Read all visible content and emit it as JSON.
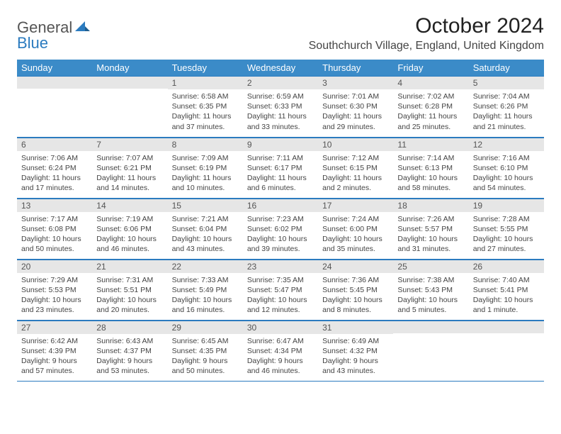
{
  "logo": {
    "text_general": "General",
    "text_blue": "Blue"
  },
  "header": {
    "month_title": "October 2024",
    "location": "Southchurch Village, England, United Kingdom"
  },
  "colors": {
    "header_bg": "#3b8bc8",
    "rule": "#2b7bbf",
    "daynum_bg": "#e6e6e6"
  },
  "day_headers": [
    "Sunday",
    "Monday",
    "Tuesday",
    "Wednesday",
    "Thursday",
    "Friday",
    "Saturday"
  ],
  "weeks": [
    [
      {
        "n": "",
        "sr": "",
        "ss": "",
        "dl": ""
      },
      {
        "n": "",
        "sr": "",
        "ss": "",
        "dl": ""
      },
      {
        "n": "1",
        "sr": "Sunrise: 6:58 AM",
        "ss": "Sunset: 6:35 PM",
        "dl": "Daylight: 11 hours and 37 minutes."
      },
      {
        "n": "2",
        "sr": "Sunrise: 6:59 AM",
        "ss": "Sunset: 6:33 PM",
        "dl": "Daylight: 11 hours and 33 minutes."
      },
      {
        "n": "3",
        "sr": "Sunrise: 7:01 AM",
        "ss": "Sunset: 6:30 PM",
        "dl": "Daylight: 11 hours and 29 minutes."
      },
      {
        "n": "4",
        "sr": "Sunrise: 7:02 AM",
        "ss": "Sunset: 6:28 PM",
        "dl": "Daylight: 11 hours and 25 minutes."
      },
      {
        "n": "5",
        "sr": "Sunrise: 7:04 AM",
        "ss": "Sunset: 6:26 PM",
        "dl": "Daylight: 11 hours and 21 minutes."
      }
    ],
    [
      {
        "n": "6",
        "sr": "Sunrise: 7:06 AM",
        "ss": "Sunset: 6:24 PM",
        "dl": "Daylight: 11 hours and 17 minutes."
      },
      {
        "n": "7",
        "sr": "Sunrise: 7:07 AM",
        "ss": "Sunset: 6:21 PM",
        "dl": "Daylight: 11 hours and 14 minutes."
      },
      {
        "n": "8",
        "sr": "Sunrise: 7:09 AM",
        "ss": "Sunset: 6:19 PM",
        "dl": "Daylight: 11 hours and 10 minutes."
      },
      {
        "n": "9",
        "sr": "Sunrise: 7:11 AM",
        "ss": "Sunset: 6:17 PM",
        "dl": "Daylight: 11 hours and 6 minutes."
      },
      {
        "n": "10",
        "sr": "Sunrise: 7:12 AM",
        "ss": "Sunset: 6:15 PM",
        "dl": "Daylight: 11 hours and 2 minutes."
      },
      {
        "n": "11",
        "sr": "Sunrise: 7:14 AM",
        "ss": "Sunset: 6:13 PM",
        "dl": "Daylight: 10 hours and 58 minutes."
      },
      {
        "n": "12",
        "sr": "Sunrise: 7:16 AM",
        "ss": "Sunset: 6:10 PM",
        "dl": "Daylight: 10 hours and 54 minutes."
      }
    ],
    [
      {
        "n": "13",
        "sr": "Sunrise: 7:17 AM",
        "ss": "Sunset: 6:08 PM",
        "dl": "Daylight: 10 hours and 50 minutes."
      },
      {
        "n": "14",
        "sr": "Sunrise: 7:19 AM",
        "ss": "Sunset: 6:06 PM",
        "dl": "Daylight: 10 hours and 46 minutes."
      },
      {
        "n": "15",
        "sr": "Sunrise: 7:21 AM",
        "ss": "Sunset: 6:04 PM",
        "dl": "Daylight: 10 hours and 43 minutes."
      },
      {
        "n": "16",
        "sr": "Sunrise: 7:23 AM",
        "ss": "Sunset: 6:02 PM",
        "dl": "Daylight: 10 hours and 39 minutes."
      },
      {
        "n": "17",
        "sr": "Sunrise: 7:24 AM",
        "ss": "Sunset: 6:00 PM",
        "dl": "Daylight: 10 hours and 35 minutes."
      },
      {
        "n": "18",
        "sr": "Sunrise: 7:26 AM",
        "ss": "Sunset: 5:57 PM",
        "dl": "Daylight: 10 hours and 31 minutes."
      },
      {
        "n": "19",
        "sr": "Sunrise: 7:28 AM",
        "ss": "Sunset: 5:55 PM",
        "dl": "Daylight: 10 hours and 27 minutes."
      }
    ],
    [
      {
        "n": "20",
        "sr": "Sunrise: 7:29 AM",
        "ss": "Sunset: 5:53 PM",
        "dl": "Daylight: 10 hours and 23 minutes."
      },
      {
        "n": "21",
        "sr": "Sunrise: 7:31 AM",
        "ss": "Sunset: 5:51 PM",
        "dl": "Daylight: 10 hours and 20 minutes."
      },
      {
        "n": "22",
        "sr": "Sunrise: 7:33 AM",
        "ss": "Sunset: 5:49 PM",
        "dl": "Daylight: 10 hours and 16 minutes."
      },
      {
        "n": "23",
        "sr": "Sunrise: 7:35 AM",
        "ss": "Sunset: 5:47 PM",
        "dl": "Daylight: 10 hours and 12 minutes."
      },
      {
        "n": "24",
        "sr": "Sunrise: 7:36 AM",
        "ss": "Sunset: 5:45 PM",
        "dl": "Daylight: 10 hours and 8 minutes."
      },
      {
        "n": "25",
        "sr": "Sunrise: 7:38 AM",
        "ss": "Sunset: 5:43 PM",
        "dl": "Daylight: 10 hours and 5 minutes."
      },
      {
        "n": "26",
        "sr": "Sunrise: 7:40 AM",
        "ss": "Sunset: 5:41 PM",
        "dl": "Daylight: 10 hours and 1 minute."
      }
    ],
    [
      {
        "n": "27",
        "sr": "Sunrise: 6:42 AM",
        "ss": "Sunset: 4:39 PM",
        "dl": "Daylight: 9 hours and 57 minutes."
      },
      {
        "n": "28",
        "sr": "Sunrise: 6:43 AM",
        "ss": "Sunset: 4:37 PM",
        "dl": "Daylight: 9 hours and 53 minutes."
      },
      {
        "n": "29",
        "sr": "Sunrise: 6:45 AM",
        "ss": "Sunset: 4:35 PM",
        "dl": "Daylight: 9 hours and 50 minutes."
      },
      {
        "n": "30",
        "sr": "Sunrise: 6:47 AM",
        "ss": "Sunset: 4:34 PM",
        "dl": "Daylight: 9 hours and 46 minutes."
      },
      {
        "n": "31",
        "sr": "Sunrise: 6:49 AM",
        "ss": "Sunset: 4:32 PM",
        "dl": "Daylight: 9 hours and 43 minutes."
      },
      {
        "n": "",
        "sr": "",
        "ss": "",
        "dl": ""
      },
      {
        "n": "",
        "sr": "",
        "ss": "",
        "dl": ""
      }
    ]
  ]
}
